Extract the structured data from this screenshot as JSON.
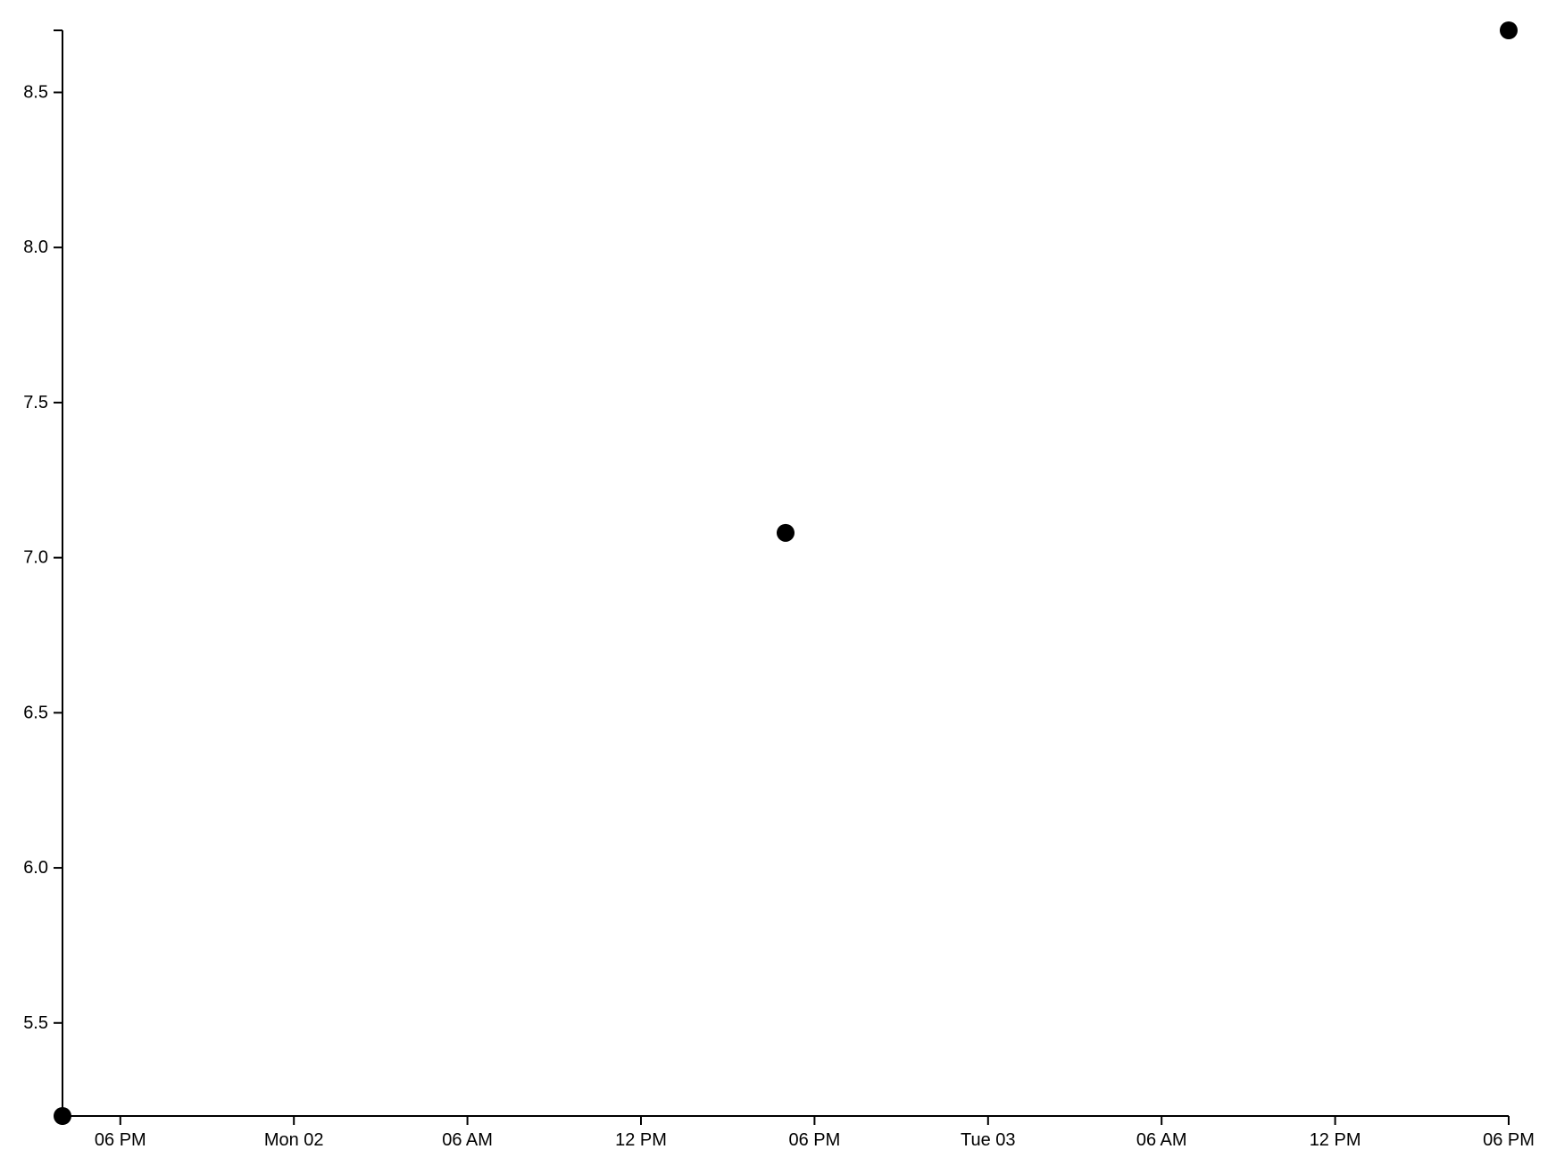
{
  "chart_data": {
    "type": "scatter",
    "title": "",
    "xlabel": "",
    "ylabel": "",
    "x_axis_type": "time",
    "xlim": [
      "Sun 01 16:00",
      "Tue 03 18:00"
    ],
    "ylim": [
      5.2,
      8.7
    ],
    "x_ticks": [
      {
        "label": "06 PM",
        "time": "Sun 01 18:00"
      },
      {
        "label": "Mon 02",
        "time": "Mon 02 00:00"
      },
      {
        "label": "06 AM",
        "time": "Mon 02 06:00"
      },
      {
        "label": "12 PM",
        "time": "Mon 02 12:00"
      },
      {
        "label": "06 PM",
        "time": "Mon 02 18:00"
      },
      {
        "label": "Tue 03",
        "time": "Tue 03 00:00"
      },
      {
        "label": "06 AM",
        "time": "Tue 03 06:00"
      },
      {
        "label": "12 PM",
        "time": "Tue 03 12:00"
      },
      {
        "label": "06 PM",
        "time": "Tue 03 18:00"
      }
    ],
    "y_ticks": [
      "5.5",
      "6.0",
      "6.5",
      "7.0",
      "7.5",
      "8.0",
      "8.5"
    ],
    "points": [
      {
        "x": "Sun 01 16:00",
        "y": 5.2
      },
      {
        "x": "Mon 02 17:00",
        "y": 7.08
      },
      {
        "x": "Tue 03 18:00",
        "y": 8.7
      }
    ],
    "grid": false,
    "legend": "none",
    "marker_color": "#000000",
    "axis_color": "#000000"
  }
}
